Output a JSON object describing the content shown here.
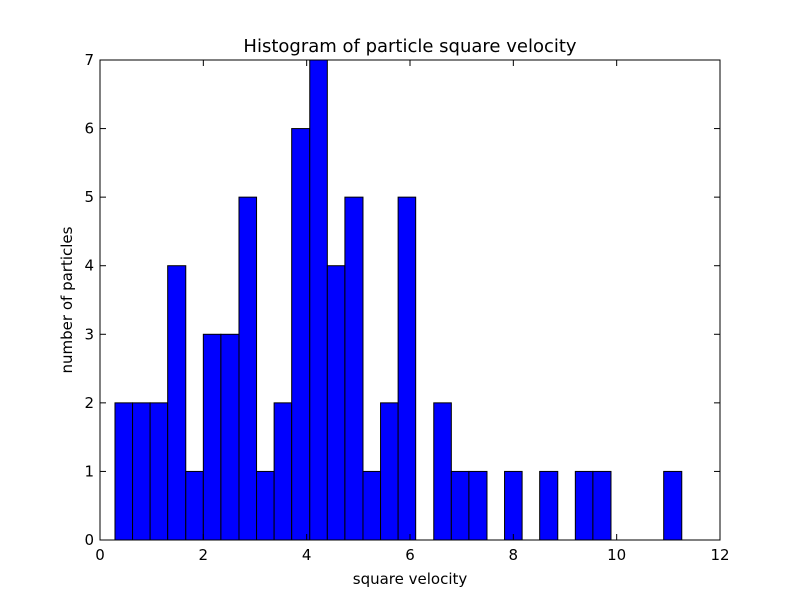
{
  "chart_data": {
    "type": "bar",
    "title": "Histogram of particle square velocity",
    "xlabel": "square velocity",
    "ylabel": "number of particles",
    "xlim": [
      0,
      12
    ],
    "ylim": [
      0,
      7
    ],
    "xticks": [
      0,
      2,
      4,
      6,
      8,
      10,
      12
    ],
    "yticks": [
      0,
      1,
      2,
      3,
      4,
      5,
      6,
      7
    ],
    "bar_color": "#0000ff",
    "bar_edge_color": "#000000",
    "grid": false,
    "bins": [
      {
        "start": 0.29,
        "end": 0.63,
        "count": 2
      },
      {
        "start": 0.63,
        "end": 0.97,
        "count": 2
      },
      {
        "start": 0.97,
        "end": 1.31,
        "count": 2
      },
      {
        "start": 1.31,
        "end": 1.66,
        "count": 4
      },
      {
        "start": 1.66,
        "end": 2.0,
        "count": 1
      },
      {
        "start": 2.0,
        "end": 2.34,
        "count": 3
      },
      {
        "start": 2.34,
        "end": 2.69,
        "count": 3
      },
      {
        "start": 2.69,
        "end": 3.03,
        "count": 5
      },
      {
        "start": 3.03,
        "end": 3.37,
        "count": 1
      },
      {
        "start": 3.37,
        "end": 3.71,
        "count": 2
      },
      {
        "start": 3.71,
        "end": 4.06,
        "count": 6
      },
      {
        "start": 4.06,
        "end": 4.4,
        "count": 7
      },
      {
        "start": 4.4,
        "end": 4.74,
        "count": 4
      },
      {
        "start": 4.74,
        "end": 5.09,
        "count": 5
      },
      {
        "start": 5.09,
        "end": 5.43,
        "count": 1
      },
      {
        "start": 5.43,
        "end": 5.77,
        "count": 2
      },
      {
        "start": 5.77,
        "end": 6.11,
        "count": 5
      },
      {
        "start": 6.11,
        "end": 6.46,
        "count": 0
      },
      {
        "start": 6.46,
        "end": 6.8,
        "count": 2
      },
      {
        "start": 6.8,
        "end": 7.14,
        "count": 1
      },
      {
        "start": 7.14,
        "end": 7.49,
        "count": 1
      },
      {
        "start": 7.49,
        "end": 7.83,
        "count": 0
      },
      {
        "start": 7.83,
        "end": 8.17,
        "count": 1
      },
      {
        "start": 8.17,
        "end": 8.51,
        "count": 0
      },
      {
        "start": 8.51,
        "end": 8.86,
        "count": 1
      },
      {
        "start": 8.86,
        "end": 9.2,
        "count": 0
      },
      {
        "start": 9.2,
        "end": 9.54,
        "count": 1
      },
      {
        "start": 9.54,
        "end": 9.89,
        "count": 1
      },
      {
        "start": 9.89,
        "end": 10.23,
        "count": 0
      },
      {
        "start": 10.23,
        "end": 10.57,
        "count": 0
      },
      {
        "start": 10.57,
        "end": 10.91,
        "count": 0
      },
      {
        "start": 10.91,
        "end": 11.26,
        "count": 1
      }
    ]
  }
}
